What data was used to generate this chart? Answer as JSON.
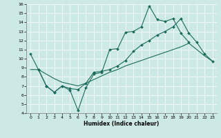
{
  "xlabel": "Humidex (Indice chaleur)",
  "bg_color": "#cce9e5",
  "line_color": "#1a6b5a",
  "grid_color": "#ffffff",
  "xlim": [
    -0.5,
    23.5
  ],
  "ylim": [
    4,
    16
  ],
  "xticks": [
    0,
    1,
    2,
    3,
    4,
    5,
    6,
    7,
    8,
    9,
    10,
    11,
    12,
    13,
    14,
    15,
    16,
    17,
    18,
    19,
    20,
    21,
    22,
    23
  ],
  "yticks": [
    4,
    5,
    6,
    7,
    8,
    9,
    10,
    11,
    12,
    13,
    14,
    15,
    16
  ],
  "line1_x": [
    0,
    1,
    2,
    3,
    4,
    5,
    6,
    7,
    8,
    9,
    10,
    11,
    12,
    13,
    14,
    15,
    16,
    17,
    18,
    19,
    20
  ],
  "line1_y": [
    10.5,
    8.8,
    7.0,
    6.3,
    7.0,
    6.5,
    4.3,
    6.8,
    8.3,
    8.5,
    11.0,
    11.1,
    12.9,
    13.0,
    13.5,
    15.8,
    14.3,
    14.1,
    14.4,
    12.8,
    11.8
  ],
  "line2_x": [
    1,
    2,
    3,
    4,
    5,
    6,
    7,
    8,
    9,
    10,
    11,
    12,
    13,
    14,
    15,
    16,
    17,
    18,
    19,
    20,
    21,
    22,
    23
  ],
  "line2_y": [
    8.8,
    7.0,
    6.3,
    7.0,
    6.7,
    6.6,
    7.3,
    8.5,
    8.6,
    8.8,
    9.2,
    9.8,
    10.8,
    11.5,
    12.0,
    12.6,
    13.0,
    13.5,
    14.4,
    12.8,
    11.8,
    10.5,
    9.7
  ],
  "line3_x": [
    0,
    1,
    2,
    3,
    4,
    5,
    6,
    7,
    8,
    9,
    10,
    11,
    12,
    13,
    14,
    15,
    16,
    17,
    18,
    19,
    20,
    21,
    22,
    23
  ],
  "line3_y": [
    8.8,
    8.8,
    8.3,
    7.8,
    7.4,
    7.2,
    7.0,
    7.3,
    7.7,
    8.1,
    8.5,
    8.8,
    9.2,
    9.5,
    9.8,
    10.1,
    10.4,
    10.7,
    11.0,
    11.3,
    11.7,
    11.0,
    10.3,
    9.7
  ]
}
